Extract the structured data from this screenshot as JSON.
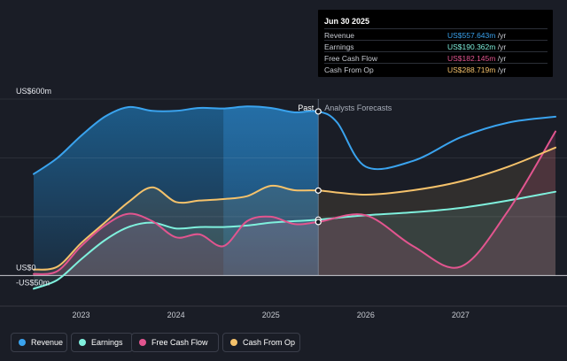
{
  "tooltip": {
    "date": "Jun 30 2025",
    "rows": [
      {
        "label": "Revenue",
        "value": "US$557.643m",
        "unit": " /yr",
        "color": "#3aa3ee"
      },
      {
        "label": "Earnings",
        "value": "US$190.362m",
        "unit": " /yr",
        "color": "#7ff0dd"
      },
      {
        "label": "Free Cash Flow",
        "value": "US$182.145m",
        "unit": " /yr",
        "color": "#e2558f"
      },
      {
        "label": "Cash From Op",
        "value": "US$288.719m",
        "unit": " /yr",
        "color": "#f5c26b"
      }
    ]
  },
  "chart_data": {
    "type": "line",
    "y_top_label": "US$600m",
    "y_zero_label": "US$0",
    "y_bottom_label": "-US$50m",
    "ylim": [
      -50,
      600
    ],
    "xlim": [
      2022.5,
      2028.0
    ],
    "x_ticks": [
      {
        "value": 2023.0,
        "label": "2023"
      },
      {
        "value": 2024.0,
        "label": "2024"
      },
      {
        "value": 2025.0,
        "label": "2025"
      },
      {
        "value": 2026.0,
        "label": "2026"
      },
      {
        "value": 2027.0,
        "label": "2027"
      }
    ],
    "divider_x": 2025.5,
    "highlight_from_x": 2024.5,
    "past_label": "Past",
    "forecast_label": "Analysts Forecasts",
    "series": [
      {
        "name": "Revenue",
        "color": "#3aa3ee",
        "x": [
          2022.5,
          2022.75,
          2023.0,
          2023.25,
          2023.5,
          2023.75,
          2024.0,
          2024.25,
          2024.5,
          2024.75,
          2025.0,
          2025.25,
          2025.5,
          2025.7,
          2026.0,
          2026.5,
          2027.0,
          2027.5,
          2028.0
        ],
        "values": [
          345,
          400,
          475,
          540,
          573,
          560,
          560,
          570,
          568,
          575,
          570,
          555,
          558,
          520,
          370,
          390,
          470,
          520,
          540
        ]
      },
      {
        "name": "Earnings",
        "color": "#7ff0dd",
        "x": [
          2022.5,
          2022.75,
          2023.0,
          2023.25,
          2023.5,
          2023.75,
          2024.0,
          2024.25,
          2024.5,
          2024.75,
          2025.0,
          2025.25,
          2025.5,
          2026.0,
          2026.5,
          2027.0,
          2027.5,
          2028.0
        ],
        "values": [
          -45,
          -15,
          55,
          120,
          165,
          180,
          160,
          165,
          165,
          170,
          180,
          185,
          190,
          205,
          215,
          230,
          255,
          285
        ]
      },
      {
        "name": "Free Cash Flow",
        "color": "#e2558f",
        "x": [
          2022.5,
          2022.75,
          2023.0,
          2023.25,
          2023.5,
          2023.75,
          2024.0,
          2024.25,
          2024.5,
          2024.75,
          2025.0,
          2025.25,
          2025.5,
          2026.0,
          2026.5,
          2027.0,
          2027.5,
          2028.0
        ],
        "values": [
          5,
          15,
          100,
          170,
          210,
          185,
          130,
          140,
          100,
          185,
          200,
          175,
          182,
          205,
          100,
          30,
          220,
          490
        ]
      },
      {
        "name": "Cash From Op",
        "color": "#f5c26b",
        "x": [
          2022.5,
          2022.75,
          2023.0,
          2023.25,
          2023.5,
          2023.75,
          2024.0,
          2024.25,
          2024.5,
          2024.75,
          2025.0,
          2025.25,
          2025.5,
          2026.0,
          2026.5,
          2027.0,
          2027.5,
          2028.0
        ],
        "values": [
          20,
          30,
          110,
          180,
          250,
          300,
          250,
          255,
          260,
          270,
          305,
          290,
          289,
          275,
          290,
          320,
          370,
          435
        ]
      }
    ]
  },
  "legend": [
    {
      "label": "Revenue",
      "color": "#3aa3ee"
    },
    {
      "label": "Earnings",
      "color": "#7ff0dd"
    },
    {
      "label": "Free Cash Flow",
      "color": "#e2558f"
    },
    {
      "label": "Cash From Op",
      "color": "#f5c26b"
    }
  ]
}
